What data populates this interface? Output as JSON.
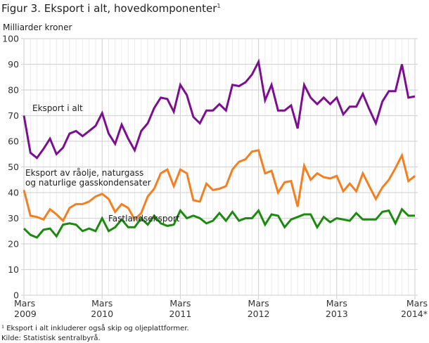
{
  "chart_data": {
    "type": "line",
    "title": "Figur 3. Eksport i alt, hovedkomponenter",
    "title_footnote_mark": "1",
    "ylabel": "Milliarder kroner",
    "ylim": [
      0,
      100
    ],
    "yticks": [
      0,
      10,
      20,
      30,
      40,
      50,
      60,
      70,
      80,
      90,
      100
    ],
    "x_start": "Mars 2009",
    "x_frequency": "monthly",
    "n_points": 61,
    "xtick_labels": [
      {
        "month": "Mars",
        "year": "2009",
        "index": 0
      },
      {
        "month": "Mars",
        "year": "2010",
        "index": 12
      },
      {
        "month": "Mars",
        "year": "2011",
        "index": 24
      },
      {
        "month": "Mars",
        "year": "2012",
        "index": 36
      },
      {
        "month": "Mars",
        "year": "2013",
        "index": 48
      },
      {
        "month": "Mars",
        "year": "2014*",
        "index": 60
      }
    ],
    "grid": true,
    "series": [
      {
        "name": "Eksport i alt",
        "color": "#7b0f8f",
        "values": [
          70,
          55.5,
          53.5,
          57,
          61,
          55,
          57.5,
          63,
          64,
          62,
          64,
          66,
          71,
          63,
          59,
          66.5,
          61,
          56.5,
          64,
          67,
          73,
          77,
          76.5,
          71.5,
          82,
          78,
          69.5,
          67,
          72,
          72,
          74.5,
          72,
          82,
          81.5,
          83,
          86,
          91,
          76,
          82,
          72,
          72,
          74,
          65,
          82,
          77,
          74.5,
          77,
          74.5,
          77,
          70.5,
          73.5,
          73.5,
          78.5,
          72.5,
          67,
          75.5,
          79.5,
          79.5,
          90,
          77,
          77.5
        ]
      },
      {
        "name": "Eksport av råolje, naturgass og naturlige gasskondensater",
        "name_line1": "Eksport av råolje, naturgass",
        "name_line2": "og naturlige gasskondensater",
        "color": "#f57f20",
        "values": [
          41,
          31,
          30.5,
          29.5,
          33.5,
          31.5,
          29,
          34,
          35.5,
          35.5,
          36.5,
          38.5,
          39.5,
          37.5,
          32.5,
          35.5,
          34,
          29.5,
          32,
          38.5,
          41.5,
          47.5,
          49,
          42.5,
          49,
          47.5,
          37,
          36.5,
          43.5,
          41,
          41.5,
          42.5,
          49,
          52,
          53,
          56,
          56.5,
          47.5,
          48.5,
          40,
          44,
          44.5,
          34.5,
          50.5,
          45,
          47.5,
          46,
          45.5,
          46.5,
          40.5,
          43.5,
          40.5,
          47.5,
          42.5,
          37.5,
          42,
          45,
          49.5,
          54.5,
          44.5,
          46.5
        ]
      },
      {
        "name": "Fastlandseksport",
        "color": "#1b8a0f",
        "values": [
          26,
          23.5,
          22.5,
          25.5,
          26,
          23,
          27.5,
          28,
          27.5,
          25,
          26,
          25,
          30,
          25,
          26.5,
          29.5,
          26.5,
          26.5,
          30,
          27.5,
          31,
          28,
          27,
          27.5,
          33,
          30,
          31,
          30,
          28,
          29,
          32,
          29,
          32.5,
          29,
          30,
          30,
          33,
          27.5,
          31.5,
          31,
          26.5,
          29.5,
          30.5,
          31.5,
          31.5,
          26.5,
          30.5,
          28.5,
          30,
          29.5,
          29,
          32,
          29.5,
          29.5,
          29.5,
          32.5,
          33,
          28,
          33.5,
          31,
          31
        ]
      }
    ],
    "notes": [
      "¹ Eksport i alt inkluderer også skip og oljeplattformer.",
      "Kilde: Statistisk sentralbyrå."
    ]
  }
}
